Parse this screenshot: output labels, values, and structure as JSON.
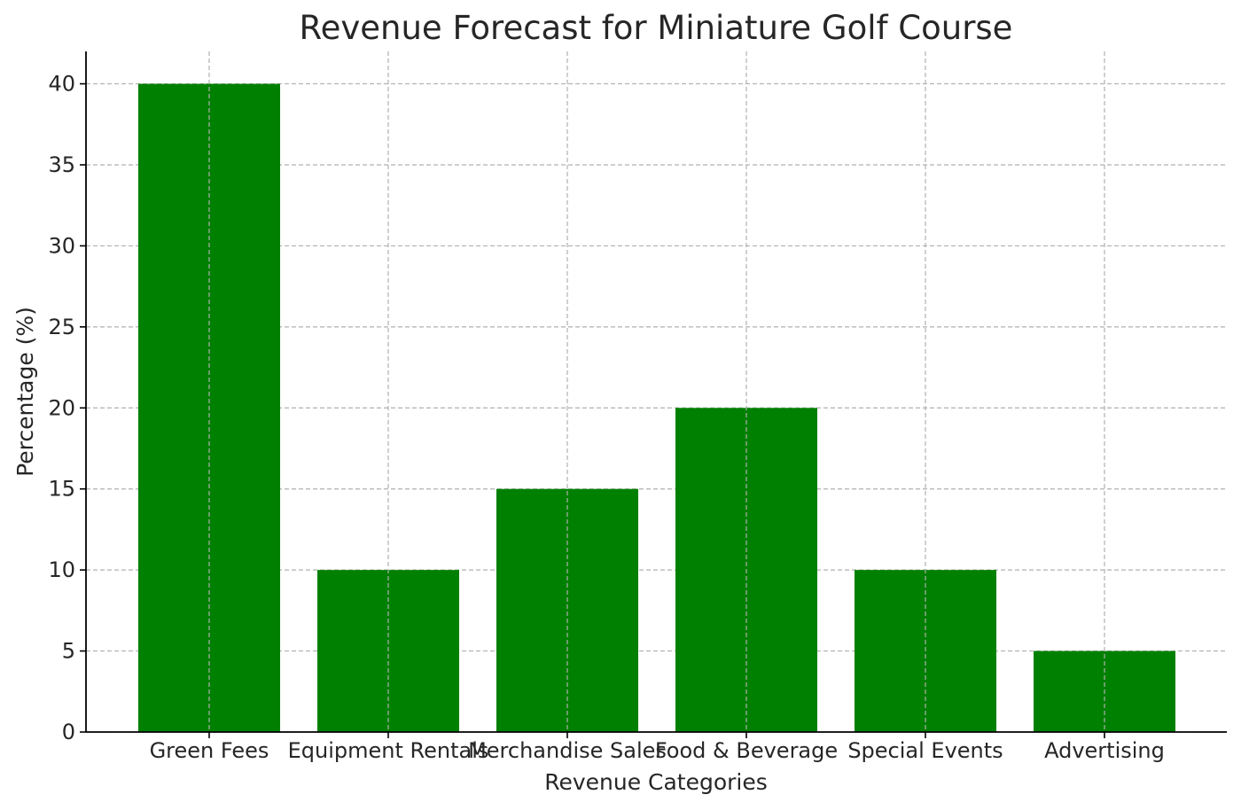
{
  "chart_data": {
    "type": "bar",
    "title": "Revenue Forecast for Miniature Golf Course",
    "xlabel": "Revenue Categories",
    "ylabel": "Percentage (%)",
    "categories": [
      "Green Fees",
      "Equipment Rentals",
      "Merchandise Sales",
      "Food & Beverage",
      "Special Events",
      "Advertising"
    ],
    "values": [
      40,
      10,
      15,
      20,
      10,
      5
    ],
    "ylim": [
      0,
      42
    ],
    "yticks": [
      0,
      5,
      10,
      15,
      20,
      25,
      30,
      35,
      40
    ],
    "grid": true,
    "bar_color": "#008000"
  }
}
